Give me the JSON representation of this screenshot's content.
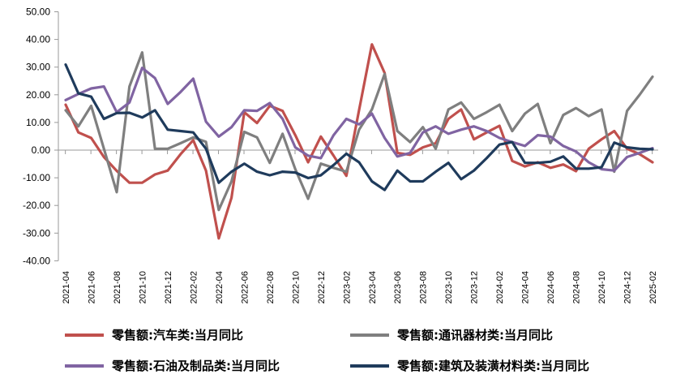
{
  "chart_data": {
    "type": "line",
    "title": "",
    "xlabel": "",
    "ylabel": "",
    "ylim": [
      -40,
      50
    ],
    "yticks": [
      "50.00",
      "40.00",
      "30.00",
      "20.00",
      "10.00",
      "0.00",
      "-10.00",
      "-20.00",
      "-30.00",
      "-40.00"
    ],
    "ytick_values": [
      50,
      40,
      30,
      20,
      10,
      0,
      -10,
      -20,
      -30,
      -40
    ],
    "x": [
      "2021-04",
      "2021-05",
      "2021-06",
      "2021-07",
      "2021-08",
      "2021-09",
      "2021-10",
      "2021-11",
      "2021-12",
      "2022-01",
      "2022-02",
      "2022-03",
      "2022-04",
      "2022-05",
      "2022-06",
      "2022-07",
      "2022-08",
      "2022-09",
      "2022-10",
      "2022-11",
      "2022-12",
      "2023-01",
      "2023-02",
      "2023-03",
      "2023-04",
      "2023-05",
      "2023-06",
      "2023-07",
      "2023-08",
      "2023-09",
      "2023-10",
      "2023-11",
      "2023-12",
      "2024-01",
      "2024-02",
      "2024-03",
      "2024-04",
      "2024-05",
      "2024-06",
      "2024-07",
      "2024-08",
      "2024-09",
      "2024-10",
      "2024-11",
      "2024-12",
      "2025-01",
      "2025-02"
    ],
    "xtick_labels": [
      "2021-04",
      "2021-06",
      "2021-08",
      "2021-10",
      "2021-12",
      "2022-02",
      "2022-04",
      "2022-06",
      "2022-08",
      "2022-10",
      "2022-12",
      "2023-02",
      "2023-04",
      "2023-06",
      "2023-08",
      "2023-10",
      "2023-12",
      "2024-02",
      "2024-04",
      "2024-06",
      "2024-08",
      "2024-10",
      "2024-12",
      "2025-02"
    ],
    "grid": false,
    "legend_position": "bottom",
    "series": [
      {
        "name": "零售额:汽车类:当月同比",
        "color": "#c0504d",
        "values": [
          16.4,
          6.4,
          4.4,
          -2.5,
          -7.5,
          -11.8,
          -11.8,
          -8.8,
          -7.4,
          -1.5,
          3.6,
          -7.4,
          -31.9,
          -17.2,
          13.7,
          9.8,
          16.0,
          14.2,
          5.4,
          -4.4,
          4.9,
          -2.0,
          -9.3,
          14.5,
          38.2,
          27.9,
          -1.0,
          -1.7,
          1.0,
          2.5,
          11.3,
          14.7,
          3.9,
          6.4,
          8.8,
          -3.9,
          -5.9,
          -4.4,
          -6.4,
          -5.2,
          -7.6,
          0.5,
          3.9,
          6.9,
          0.5,
          -1.5,
          -4.4
        ]
      },
      {
        "name": "零售额:通讯器材类:当月同比",
        "color": "#7f7f7f",
        "values": [
          14.4,
          8.6,
          16.0,
          0.5,
          -15.2,
          23.0,
          35.3,
          0.5,
          0.5,
          2.5,
          4.6,
          3.0,
          -21.6,
          -11.3,
          6.6,
          4.6,
          -4.6,
          5.9,
          -6.9,
          -17.6,
          -4.9,
          -6.4,
          -7.8,
          7.4,
          14.7,
          27.5,
          6.9,
          2.9,
          8.3,
          0.5,
          14.7,
          17.2,
          11.3,
          13.7,
          16.4,
          6.9,
          13.2,
          16.7,
          2.5,
          12.7,
          15.2,
          12.3,
          14.7,
          -7.8,
          14.2,
          20.1,
          26.5
        ]
      },
      {
        "name": "零售额:石油及制品类:当月同比",
        "color": "#8064a2",
        "values": [
          18.1,
          20.3,
          22.3,
          23.0,
          13.7,
          17.2,
          29.7,
          26.0,
          16.7,
          21.0,
          25.8,
          10.3,
          4.9,
          8.3,
          14.4,
          14.2,
          17.0,
          11.3,
          1.0,
          -2.0,
          -2.9,
          5.4,
          11.3,
          9.3,
          13.2,
          4.4,
          -2.3,
          -1.0,
          6.4,
          8.6,
          5.9,
          7.4,
          8.6,
          6.9,
          4.4,
          2.9,
          1.5,
          5.4,
          4.9,
          1.5,
          -0.5,
          -4.4,
          -6.9,
          -7.4,
          -2.5,
          -1.0,
          0.7
        ]
      },
      {
        "name": "零售额:建筑及装潢材料类:当月同比",
        "color": "#1f3b5c",
        "values": [
          30.9,
          20.5,
          19.3,
          11.3,
          13.4,
          13.5,
          11.8,
          14.4,
          7.4,
          6.9,
          6.4,
          0.5,
          -11.8,
          -7.8,
          -4.9,
          -7.8,
          -9.1,
          -7.8,
          -8.1,
          -10.1,
          -9.1,
          -5.4,
          -1.3,
          -4.4,
          -11.3,
          -14.4,
          -7.4,
          -11.3,
          -11.3,
          -7.8,
          -4.6,
          -10.5,
          -7.4,
          -2.9,
          2.0,
          2.9,
          -4.6,
          -4.6,
          -4.2,
          -2.3,
          -6.7,
          -6.7,
          -6.2,
          2.7,
          1.0,
          0.5,
          0.3
        ]
      }
    ]
  }
}
